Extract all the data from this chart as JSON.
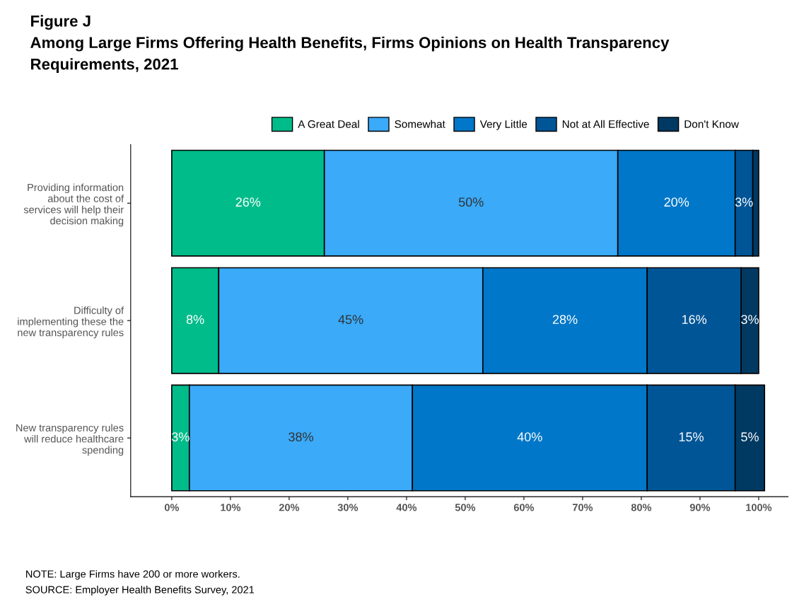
{
  "chart_data": {
    "type": "bar",
    "orientation": "horizontal",
    "stacked": true,
    "title": "Figure J\nAmong Large Firms Offering Health Benefits, Firms Opinions on Health Transparency\nRequirements, 2021",
    "categories": [
      "Providing information\nabout the cost of\nservices will help their\ndecision making",
      "Difficulty of\nimplementing these the\nnew transparency rules",
      "New transparency rules\nwill reduce healthcare\nspending"
    ],
    "series": [
      {
        "name": "A Great Deal",
        "color": "#00bc8a",
        "values": [
          26,
          8,
          3
        ],
        "value_labels": [
          "26%",
          "8%",
          "3%"
        ]
      },
      {
        "name": "Somewhat",
        "color": "#3aaaf9",
        "values": [
          50,
          45,
          38
        ],
        "value_labels": [
          "50%",
          "45%",
          "38%"
        ]
      },
      {
        "name": "Very Little",
        "color": "#0077c8",
        "values": [
          20,
          28,
          40
        ],
        "value_labels": [
          "20%",
          "28%",
          "40%"
        ]
      },
      {
        "name": "Not at All Effective",
        "color": "#005596",
        "values": [
          3,
          16,
          15
        ],
        "value_labels": [
          "3%",
          "16%",
          "15%"
        ]
      },
      {
        "name": "Don't Know",
        "color": "#003a63",
        "values": [
          1,
          3,
          5
        ],
        "value_labels": [
          null,
          "3%",
          "5%"
        ]
      }
    ],
    "xlim": [
      -7,
      105
    ],
    "xticks": [
      {
        "value": 0,
        "label": "0%"
      },
      {
        "value": 10,
        "label": "10%"
      },
      {
        "value": 20,
        "label": "20%"
      },
      {
        "value": 30,
        "label": "30%"
      },
      {
        "value": 40,
        "label": "40%"
      },
      {
        "value": 50,
        "label": "50%"
      },
      {
        "value": 60,
        "label": "60%"
      },
      {
        "value": 70,
        "label": "70%"
      },
      {
        "value": 80,
        "label": "80%"
      },
      {
        "value": 90,
        "label": "90%"
      },
      {
        "value": 100,
        "label": "100%"
      }
    ],
    "grid": false,
    "legend": "top",
    "annotations": [
      "NOTE: Large Firms have 200 or more workers.",
      "SOURCE: Employer Health Benefits Survey, 2021"
    ]
  }
}
